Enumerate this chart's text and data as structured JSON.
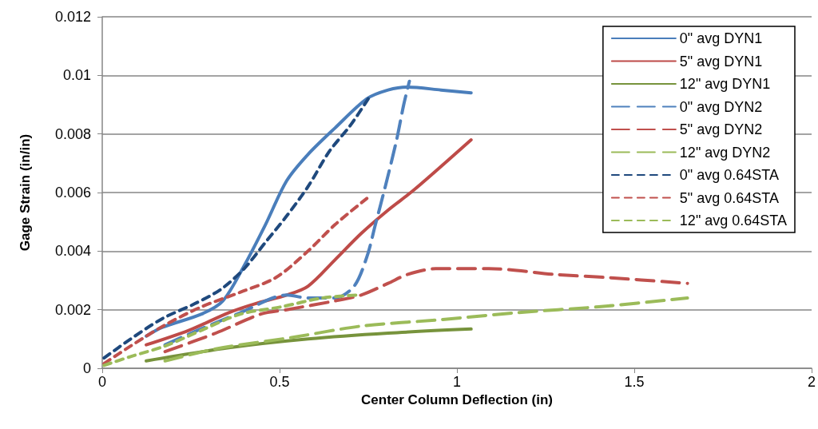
{
  "chart_data": {
    "type": "line",
    "xlabel": "Center Column Deflection (in)",
    "ylabel": "Gage Strain (in/in)",
    "xlim": [
      0,
      2
    ],
    "xticks": [
      0,
      0.5,
      1,
      1.5,
      2
    ],
    "ylim": [
      0,
      0.012
    ],
    "yticks": [
      0,
      0.002,
      0.004,
      0.006,
      0.008,
      0.01,
      0.012
    ],
    "grid": "y",
    "legend": "top right",
    "marker": "none",
    "series": [
      {
        "name": "0\" avg DYN1",
        "color": "#4a7ebb",
        "line_style": "solid",
        "x": [
          0.124,
          0.17,
          0.28,
          0.34,
          0.4,
          0.46,
          0.52,
          0.58,
          0.656,
          0.746,
          0.806,
          0.86,
          0.955,
          1.04
        ],
        "values": [
          0.0011,
          0.0014,
          0.00185,
          0.0023,
          0.0035,
          0.0049,
          0.0064,
          0.0073,
          0.0082,
          0.0092,
          0.0095,
          0.0096,
          0.0095,
          0.0094
        ]
      },
      {
        "name": "5\" avg DYN1",
        "color": "#be4b48",
        "line_style": "solid",
        "x": [
          0.124,
          0.245,
          0.357,
          0.43,
          0.52,
          0.58,
          0.656,
          0.73,
          0.806,
          0.88,
          1.04
        ],
        "values": [
          0.0008,
          0.0013,
          0.0019,
          0.0022,
          0.0025,
          0.0028,
          0.0037,
          0.0046,
          0.0054,
          0.0061,
          0.0078
        ]
      },
      {
        "name": "12\" avg DYN1",
        "color": "#77933c",
        "line_style": "solid",
        "x": [
          0.124,
          0.357,
          0.58,
          0.806,
          1.04
        ],
        "values": [
          0.00025,
          0.0007,
          0.001,
          0.0012,
          0.00134
        ]
      },
      {
        "name": "0\" avg DYN2",
        "color": "#4f81bd",
        "line_style": "dashed",
        "x": [
          0.177,
          0.26,
          0.39,
          0.52,
          0.58,
          0.656,
          0.71,
          0.746,
          0.77,
          0.8,
          0.83,
          0.85,
          0.866
        ],
        "values": [
          0.0008,
          0.00125,
          0.0019,
          0.0025,
          0.0024,
          0.0024,
          0.0028,
          0.0038,
          0.0049,
          0.0063,
          0.0078,
          0.009,
          0.0098
        ]
      },
      {
        "name": "5\" avg DYN2",
        "color": "#c0504d",
        "line_style": "dashed",
        "x": [
          0.177,
          0.32,
          0.447,
          0.52,
          0.656,
          0.73,
          0.806,
          0.86,
          0.94,
          1.09,
          1.28,
          1.42,
          1.65
        ],
        "values": [
          0.00057,
          0.0012,
          0.00185,
          0.002,
          0.0023,
          0.0025,
          0.0029,
          0.0032,
          0.0034,
          0.0034,
          0.0032,
          0.0031,
          0.0029
        ]
      },
      {
        "name": "12\" avg DYN2",
        "color": "#9bbb59",
        "line_style": "dashed",
        "x": [
          0.177,
          0.32,
          0.544,
          0.73,
          0.955,
          1.17,
          1.4,
          1.65
        ],
        "values": [
          0.00025,
          0.00066,
          0.00107,
          0.00144,
          0.00166,
          0.0019,
          0.0021,
          0.0024
        ]
      },
      {
        "name": "0\" avg 0.64STA",
        "color": "#1f497d",
        "line_style": "dotted",
        "x": [
          0.005,
          0.08,
          0.17,
          0.26,
          0.335,
          0.4,
          0.46,
          0.52,
          0.58,
          0.64,
          0.7,
          0.75
        ],
        "values": [
          0.00035,
          0.001,
          0.0017,
          0.0022,
          0.0027,
          0.0034,
          0.0043,
          0.0052,
          0.0062,
          0.0074,
          0.0083,
          0.0092
        ]
      },
      {
        "name": "5\" avg 0.64STA",
        "color": "#c0504d",
        "line_style": "dotted",
        "x": [
          0.005,
          0.08,
          0.177,
          0.28,
          0.39,
          0.49,
          0.58,
          0.656,
          0.746
        ],
        "values": [
          0.00016,
          0.00076,
          0.00148,
          0.0021,
          0.0026,
          0.0031,
          0.004,
          0.0049,
          0.0058
        ]
      },
      {
        "name": "12\" avg 0.64STA",
        "color": "#9bbb59",
        "line_style": "dotted",
        "x": [
          0.005,
          0.08,
          0.177,
          0.28,
          0.39,
          0.506,
          0.62,
          0.72
        ],
        "values": [
          0.0001,
          0.0004,
          0.00076,
          0.0013,
          0.00185,
          0.0021,
          0.0024,
          0.0025
        ]
      }
    ]
  }
}
